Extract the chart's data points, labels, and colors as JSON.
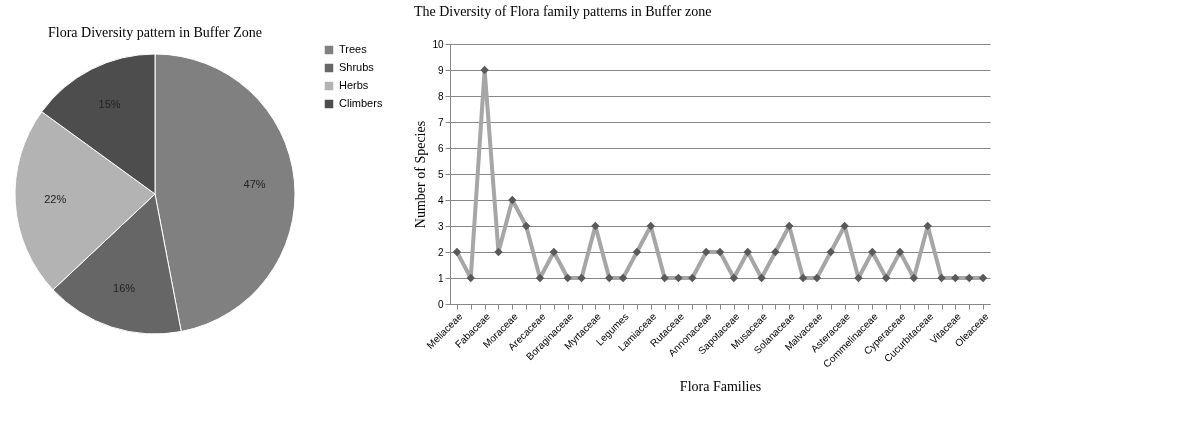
{
  "chart_data": [
    {
      "type": "pie",
      "title": "Flora Diversity  pattern in Buffer Zone",
      "categories": [
        "Trees",
        "Shrubs",
        "Herbs",
        "Climbers"
      ],
      "values": [
        47,
        16,
        22,
        15
      ],
      "colors": [
        "#808080",
        "#666666",
        "#b3b3b3",
        "#4d4d4d"
      ],
      "value_labels": [
        "47%",
        "16%",
        "22%",
        "15%"
      ],
      "legend": "right"
    },
    {
      "type": "line",
      "title": "The Diversity  of Flora family  patterns in Buffer zone",
      "xlabel": "Flora Families",
      "ylabel": "Number of Species",
      "categories": [
        "Meliaceae",
        null,
        "Fabaceae",
        null,
        "Moraceae",
        null,
        "Arecaceae",
        null,
        "Boraginaceae",
        null,
        "Myrtaceae",
        null,
        "Legumes",
        null,
        "Lamiaceae",
        null,
        "Rutaceae",
        null,
        "Annonaceae",
        null,
        "Sapotaceae",
        null,
        "Musaceae",
        null,
        "Solanaceae",
        null,
        "Malvaceae",
        null,
        "Asteraceae",
        null,
        "Commelinaceae",
        null,
        "Cyperaceae",
        null,
        "Cucurbitaceae",
        null,
        "Vitaceae",
        null,
        "Oleaceae"
      ],
      "series": [
        {
          "color": "#a6a6a6",
          "values": [
            2,
            1,
            9,
            2,
            4,
            3,
            1,
            2,
            1,
            1,
            3,
            1,
            1,
            2,
            3,
            1,
            1,
            1,
            2,
            2,
            1,
            2,
            1,
            2,
            3,
            1,
            1,
            2,
            3,
            1,
            2,
            1,
            2,
            1,
            3,
            1,
            1,
            1,
            1
          ]
        }
      ],
      "ylim": [
        0,
        10
      ],
      "yticks": [
        0,
        1,
        2,
        3,
        4,
        5,
        6,
        7,
        8,
        9,
        10
      ],
      "grid": "y",
      "marker": "diamond",
      "line_style": "solid"
    }
  ]
}
